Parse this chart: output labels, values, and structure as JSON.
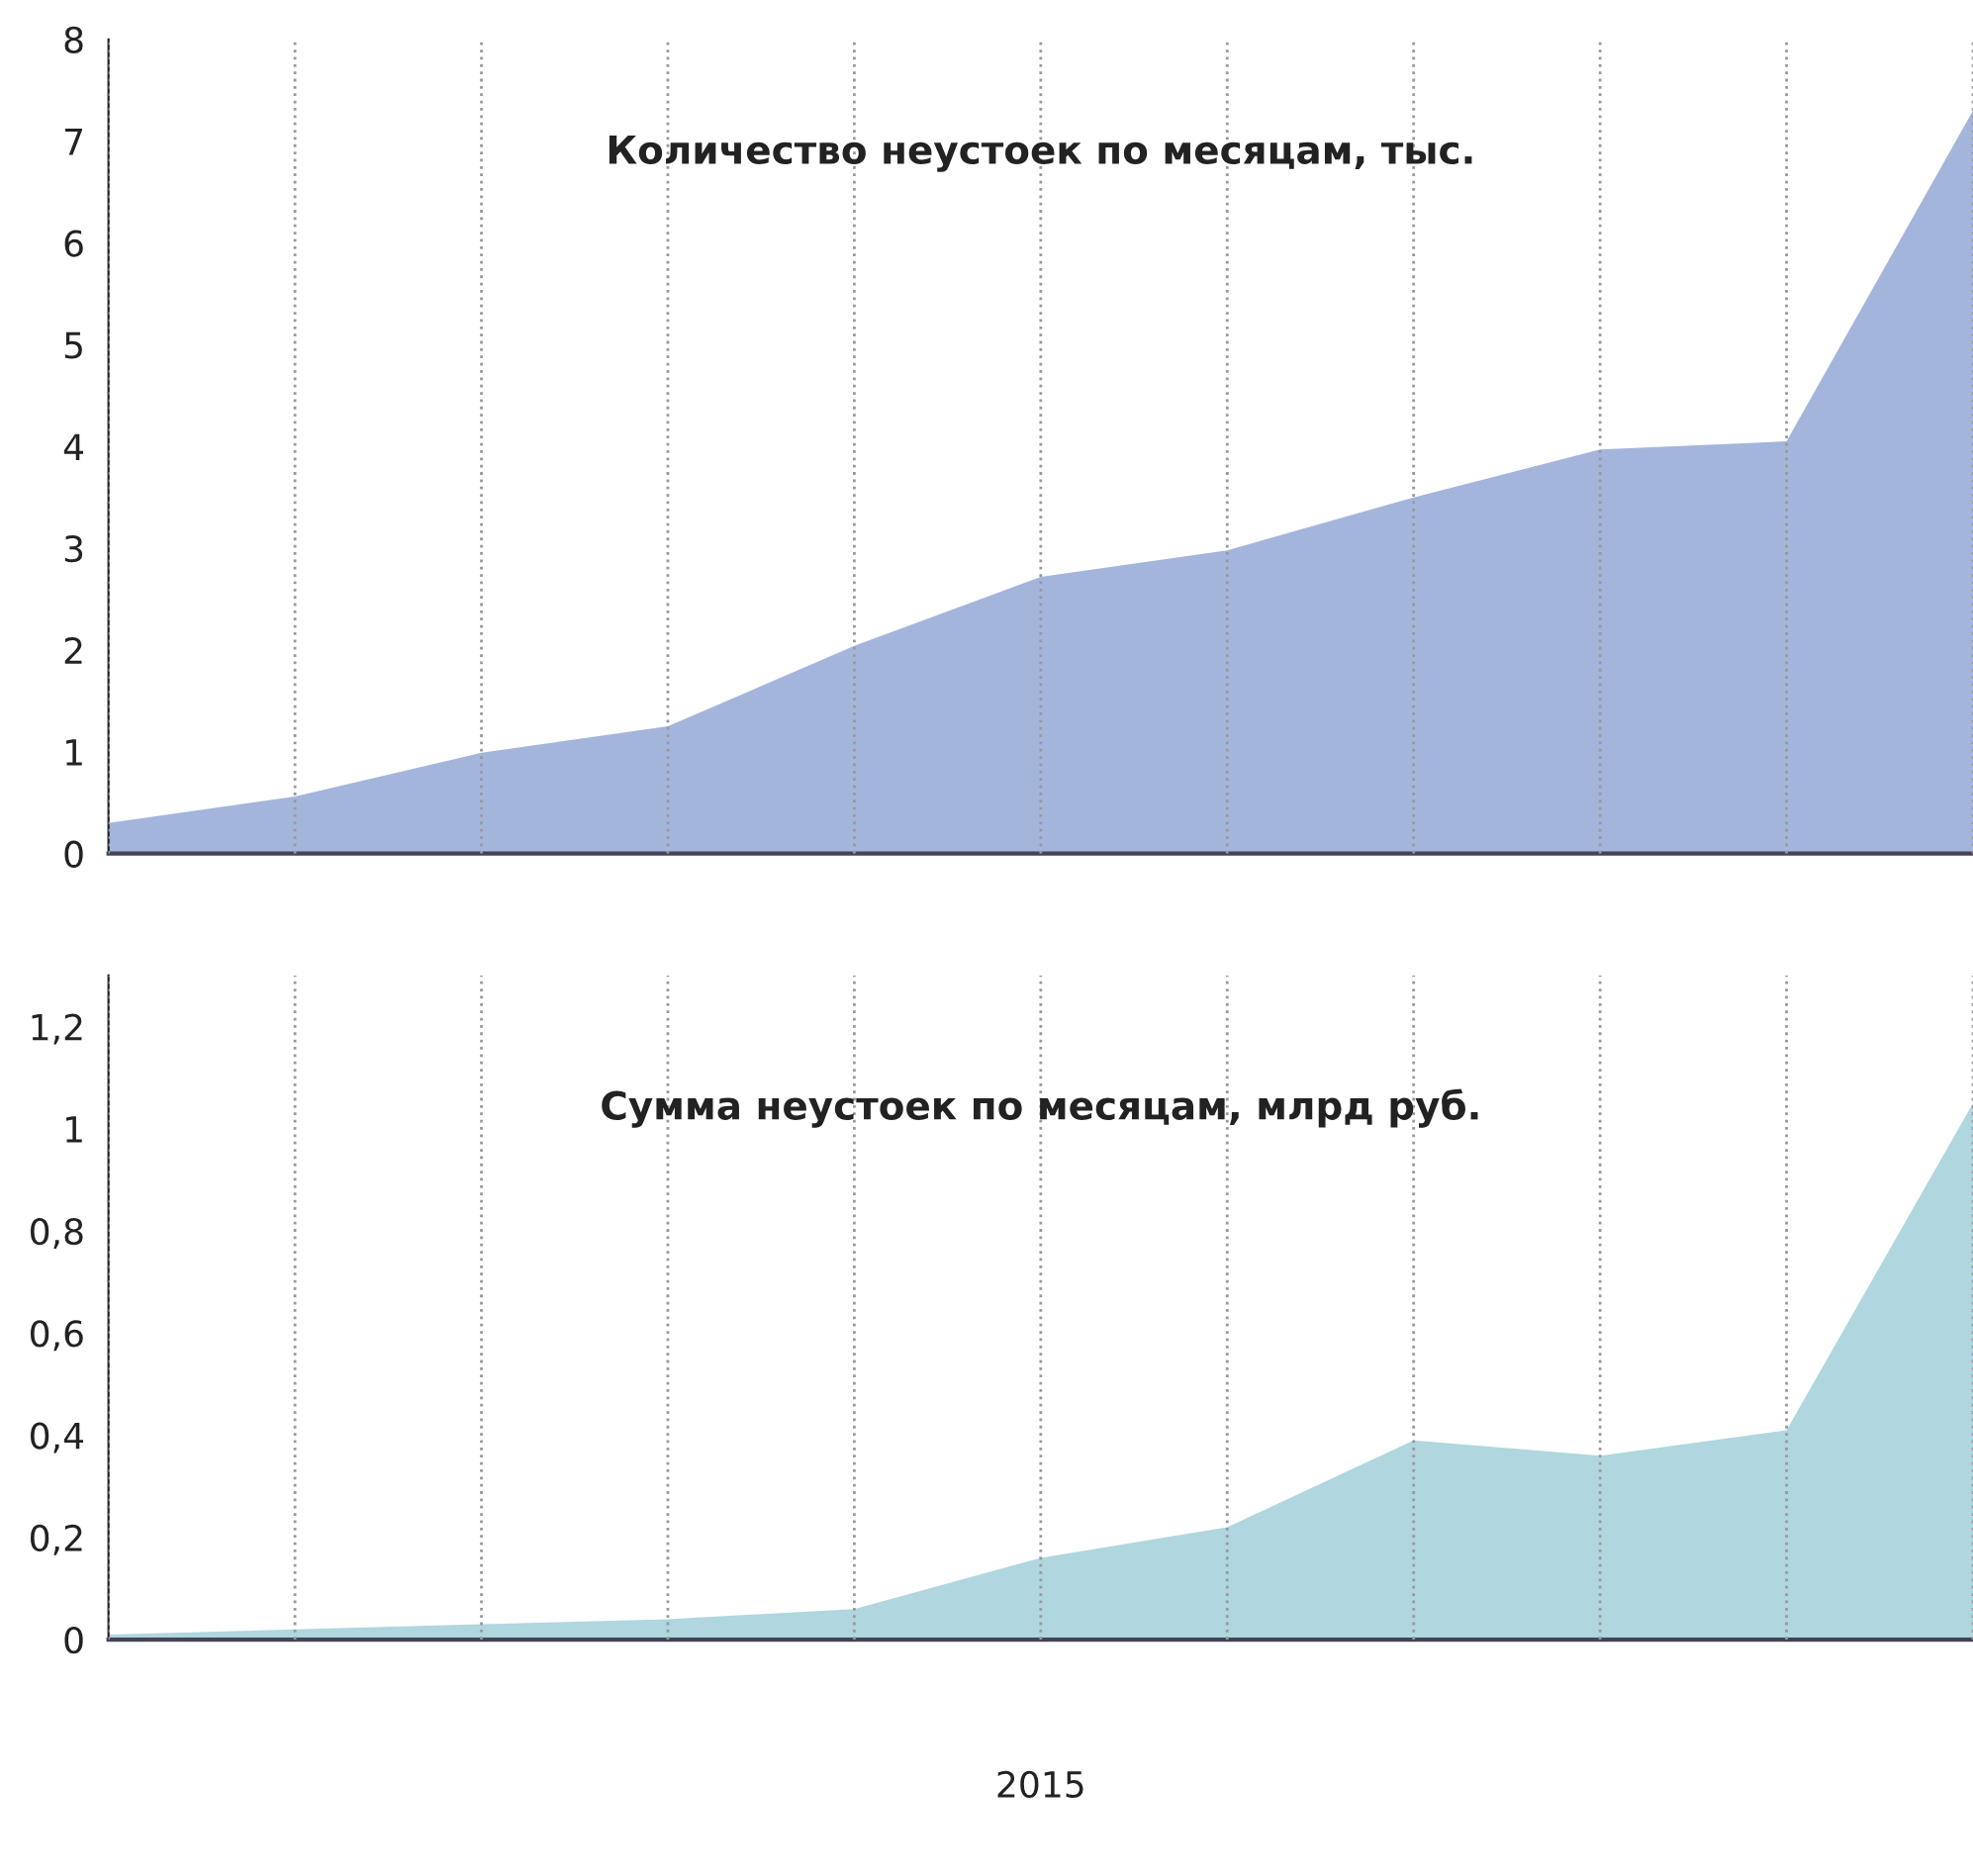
{
  "chart_data": [
    {
      "type": "area",
      "title": "Количество неустоек по месяцам, тыс.",
      "categories": [
        null,
        null,
        null,
        null,
        null,
        null,
        null,
        null,
        null,
        null,
        null
      ],
      "series": [
        {
          "color": "#a4b5dc",
          "values": [
            0.3,
            0.56,
            0.99,
            1.25,
            2.04,
            2.72,
            2.98,
            3.5,
            3.97,
            4.05,
            7.3
          ]
        }
      ],
      "ylim": [
        0,
        8
      ],
      "yticks": [
        0,
        1,
        2,
        3,
        4,
        5,
        6,
        7,
        8
      ],
      "grid": "x"
    },
    {
      "type": "area",
      "title": "Сумма неустоек по месяцам, млрд руб.",
      "xlabel": "2015",
      "categories": [
        null,
        null,
        null,
        null,
        null,
        null,
        null,
        null,
        null,
        null,
        null
      ],
      "series": [
        {
          "color": "#b0d6df",
          "values": [
            0.01,
            0.02,
            0.03,
            0.04,
            0.06,
            0.16,
            0.22,
            0.39,
            0.36,
            0.41,
            1.05
          ]
        }
      ],
      "ylim": [
        0,
        1.3
      ],
      "yticks": [
        {
          "value": 0,
          "label": "0"
        },
        {
          "value": 0.2,
          "label": "0,2"
        },
        {
          "value": 0.4,
          "label": "0,4"
        },
        {
          "value": 0.6,
          "label": "0,6"
        },
        {
          "value": 0.8,
          "label": "0,8"
        },
        {
          "value": 1,
          "label": "1"
        },
        {
          "value": 1.2,
          "label": "1,2"
        }
      ],
      "grid": "x"
    }
  ]
}
